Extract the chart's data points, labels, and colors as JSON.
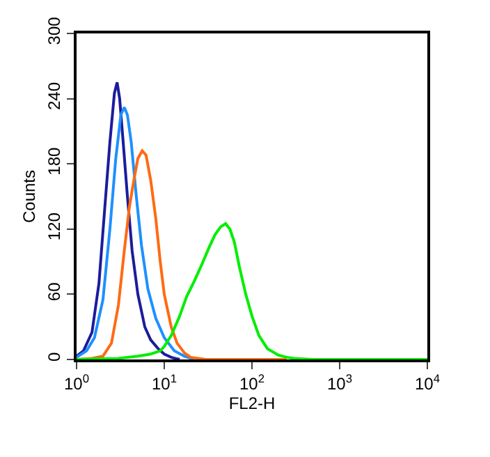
{
  "chart_data": {
    "type": "line",
    "xlabel": "FL2-H",
    "ylabel": "Counts",
    "log": "x",
    "marker": "none",
    "line_style": "solid",
    "xlim": [
      1,
      10000
    ],
    "xticks": [
      {
        "value": 1,
        "label": "10$^{0}$"
      },
      {
        "value": 10,
        "label": "10$^{1}$"
      },
      {
        "value": 100,
        "label": "10$^{2}$"
      },
      {
        "value": 1000,
        "label": "10$^{3}$"
      },
      {
        "value": 10000,
        "label": "10$^{4}$"
      }
    ],
    "ylim": [
      0,
      300
    ],
    "yticks": [
      0,
      60,
      120,
      180,
      240,
      300
    ],
    "series": [
      {
        "color": "#1c1c9c",
        "x": [
          1,
          1.2,
          1.5,
          1.8,
          2.1,
          2.4,
          2.7,
          2.9,
          3.1,
          3.4,
          3.8,
          4.3,
          5,
          6,
          7,
          8.5,
          10,
          12,
          15
        ],
        "values": [
          3,
          8,
          25,
          70,
          140,
          200,
          245,
          255,
          240,
          200,
          150,
          100,
          60,
          30,
          18,
          10,
          5,
          2,
          0
        ]
      },
      {
        "color": "#1e90ff",
        "x": [
          1,
          1.3,
          1.6,
          2,
          2.4,
          2.8,
          3.2,
          3.5,
          3.8,
          4.2,
          4.8,
          5.5,
          6.5,
          8,
          10,
          13,
          17,
          22
        ],
        "values": [
          2,
          8,
          20,
          55,
          120,
          185,
          225,
          232,
          225,
          200,
          150,
          105,
          65,
          38,
          20,
          8,
          3,
          0
        ]
      },
      {
        "color": "#ff6a13",
        "x": [
          1,
          1.5,
          2,
          2.5,
          3,
          3.5,
          4,
          4.5,
          5,
          5.6,
          6.2,
          7,
          8,
          9,
          10,
          12,
          14,
          17,
          20,
          30,
          60,
          100,
          250
        ],
        "values": [
          0,
          1,
          3,
          15,
          50,
          100,
          140,
          165,
          185,
          192,
          188,
          165,
          130,
          90,
          60,
          30,
          15,
          6,
          2,
          0,
          0,
          0,
          0
        ]
      },
      {
        "color": "#00ee00",
        "x": [
          1,
          3,
          5,
          7,
          9,
          10,
          12,
          15,
          18,
          22,
          27,
          32,
          38,
          44,
          50,
          56,
          63,
          72,
          85,
          100,
          120,
          150,
          200,
          250,
          300,
          500,
          1000,
          10000
        ],
        "values": [
          0,
          1,
          3,
          5,
          8,
          12,
          22,
          40,
          58,
          72,
          88,
          102,
          115,
          122,
          125,
          120,
          108,
          85,
          60,
          40,
          22,
          10,
          4,
          2,
          1,
          0,
          0,
          0
        ]
      }
    ]
  }
}
